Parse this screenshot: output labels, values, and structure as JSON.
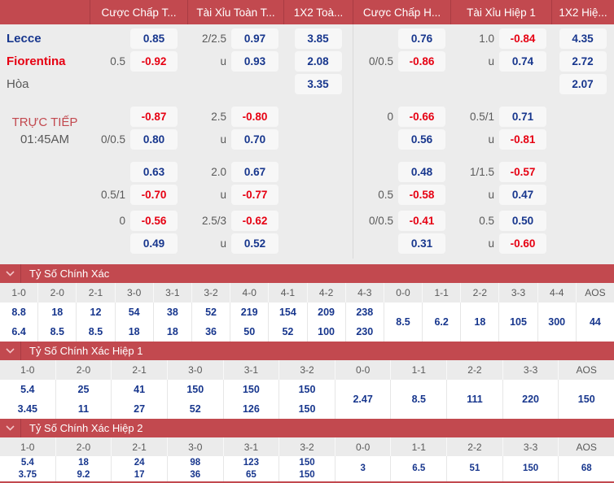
{
  "colors": {
    "bar": "#c2494f",
    "bar_divider": "#a93c43",
    "odds_positive": "#17368d",
    "odds_negative": "#e60012",
    "muted_text": "#595959",
    "background": "#ececec",
    "button_bg": "#f7f7f7"
  },
  "header": {
    "columns": [
      "Cược Chấp T...",
      "Tài Xỉu Toàn T...",
      "1X2 Toà...",
      "Cược Chấp H...",
      "Tài Xỉu Hiệp 1",
      "1X2 Hiệ..."
    ]
  },
  "live": {
    "label": "TRỰC TIẾP",
    "time": "01:45AM"
  },
  "pregame_rows": [
    {
      "name": "Lecce",
      "name_color": "navy",
      "ft_hcp": "",
      "ft_hcp_odds": "0.85",
      "ft_ou": "2/2.5",
      "ft_ou_odds": "0.97",
      "ft_1x2": "3.85",
      "h_hcp": "",
      "h_hcp_odds": "0.76",
      "h_ou": "1.0",
      "h_ou_odds": "-0.84",
      "h_1x2": "4.35"
    },
    {
      "name": "Fiorentina",
      "name_color": "red",
      "ft_hcp": "0.5",
      "ft_hcp_odds": "-0.92",
      "ft_ou": "u",
      "ft_ou_odds": "0.93",
      "ft_1x2": "2.08",
      "h_hcp": "0/0.5",
      "h_hcp_odds": "-0.86",
      "h_ou": "u",
      "h_ou_odds": "0.74",
      "h_1x2": "2.72"
    },
    {
      "name": "Hòa",
      "name_color": "gray",
      "ft_hcp": "",
      "ft_hcp_odds": "",
      "ft_ou": "",
      "ft_ou_odds": "",
      "ft_1x2": "3.35",
      "h_hcp": "",
      "h_hcp_odds": "",
      "h_ou": "",
      "h_ou_odds": "",
      "h_1x2": "2.07"
    }
  ],
  "live_pairs": [
    [
      {
        "ft_hcp": "",
        "ft_hcp_odds": "-0.87",
        "ft_ou": "2.5",
        "ft_ou_odds": "-0.80",
        "h_hcp": "0",
        "h_hcp_odds": "-0.66",
        "h_ou": "0.5/1",
        "h_ou_odds": "0.71"
      },
      {
        "ft_hcp": "0/0.5",
        "ft_hcp_odds": "0.80",
        "ft_ou": "u",
        "ft_ou_odds": "0.70",
        "h_hcp": "",
        "h_hcp_odds": "0.56",
        "h_ou": "u",
        "h_ou_odds": "-0.81"
      }
    ],
    [
      {
        "ft_hcp": "",
        "ft_hcp_odds": "0.63",
        "ft_ou": "2.0",
        "ft_ou_odds": "0.67",
        "h_hcp": "",
        "h_hcp_odds": "0.48",
        "h_ou": "1/1.5",
        "h_ou_odds": "-0.57"
      },
      {
        "ft_hcp": "0.5/1",
        "ft_hcp_odds": "-0.70",
        "ft_ou": "u",
        "ft_ou_odds": "-0.77",
        "h_hcp": "0.5",
        "h_hcp_odds": "-0.58",
        "h_ou": "u",
        "h_ou_odds": "0.47"
      }
    ],
    [
      {
        "ft_hcp": "0",
        "ft_hcp_odds": "-0.56",
        "ft_ou": "2.5/3",
        "ft_ou_odds": "-0.62",
        "h_hcp": "0/0.5",
        "h_hcp_odds": "-0.41",
        "h_ou": "0.5",
        "h_ou_odds": "0.50"
      },
      {
        "ft_hcp": "",
        "ft_hcp_odds": "0.49",
        "ft_ou": "u",
        "ft_ou_odds": "0.52",
        "h_hcp": "",
        "h_hcp_odds": "0.31",
        "h_ou": "u",
        "h_ou_odds": "-0.60"
      }
    ]
  ],
  "score_sections": [
    {
      "title": "Tỷ Số Chính Xác",
      "tight": false,
      "columns": [
        {
          "label": "1-0",
          "values": [
            "8.8",
            "6.4"
          ]
        },
        {
          "label": "2-0",
          "values": [
            "18",
            "8.5"
          ]
        },
        {
          "label": "2-1",
          "values": [
            "12",
            "8.5"
          ]
        },
        {
          "label": "3-0",
          "values": [
            "54",
            "18"
          ]
        },
        {
          "label": "3-1",
          "values": [
            "38",
            "18"
          ]
        },
        {
          "label": "3-2",
          "values": [
            "52",
            "36"
          ]
        },
        {
          "label": "4-0",
          "values": [
            "219",
            "50"
          ]
        },
        {
          "label": "4-1",
          "values": [
            "154",
            "52"
          ]
        },
        {
          "label": "4-2",
          "values": [
            "209",
            "100"
          ]
        },
        {
          "label": "4-3",
          "values": [
            "238",
            "230"
          ]
        },
        {
          "label": "0-0",
          "values": [
            "8.5"
          ]
        },
        {
          "label": "1-1",
          "values": [
            "6.2"
          ]
        },
        {
          "label": "2-2",
          "values": [
            "18"
          ]
        },
        {
          "label": "3-3",
          "values": [
            "105"
          ]
        },
        {
          "label": "4-4",
          "values": [
            "300"
          ]
        },
        {
          "label": "AOS",
          "values": [
            "44"
          ]
        }
      ]
    },
    {
      "title": "Tỷ Số Chính Xác Hiệp 1",
      "tight": false,
      "columns": [
        {
          "label": "1-0",
          "values": [
            "5.4",
            "3.45"
          ]
        },
        {
          "label": "2-0",
          "values": [
            "25",
            "11"
          ]
        },
        {
          "label": "2-1",
          "values": [
            "41",
            "27"
          ]
        },
        {
          "label": "3-0",
          "values": [
            "150",
            "52"
          ]
        },
        {
          "label": "3-1",
          "values": [
            "150",
            "126"
          ]
        },
        {
          "label": "3-2",
          "values": [
            "150",
            "150"
          ]
        },
        {
          "label": "0-0",
          "values": [
            "2.47"
          ]
        },
        {
          "label": "1-1",
          "values": [
            "8.5"
          ]
        },
        {
          "label": "2-2",
          "values": [
            "111"
          ]
        },
        {
          "label": "3-3",
          "values": [
            "220"
          ]
        },
        {
          "label": "AOS",
          "values": [
            "150"
          ]
        }
      ]
    },
    {
      "title": "Tỷ Số Chính Xác Hiệp 2",
      "tight": true,
      "columns": [
        {
          "label": "1-0",
          "values": [
            "5.4",
            "3.75"
          ]
        },
        {
          "label": "2-0",
          "values": [
            "18",
            "9.2"
          ]
        },
        {
          "label": "2-1",
          "values": [
            "24",
            "17"
          ]
        },
        {
          "label": "3-0",
          "values": [
            "98",
            "36"
          ]
        },
        {
          "label": "3-1",
          "values": [
            "123",
            "65"
          ]
        },
        {
          "label": "3-2",
          "values": [
            "150",
            "150"
          ]
        },
        {
          "label": "0-0",
          "values": [
            "3"
          ]
        },
        {
          "label": "1-1",
          "values": [
            "6.5"
          ]
        },
        {
          "label": "2-2",
          "values": [
            "51"
          ]
        },
        {
          "label": "3-3",
          "values": [
            "150"
          ]
        },
        {
          "label": "AOS",
          "values": [
            "68"
          ]
        }
      ]
    }
  ]
}
